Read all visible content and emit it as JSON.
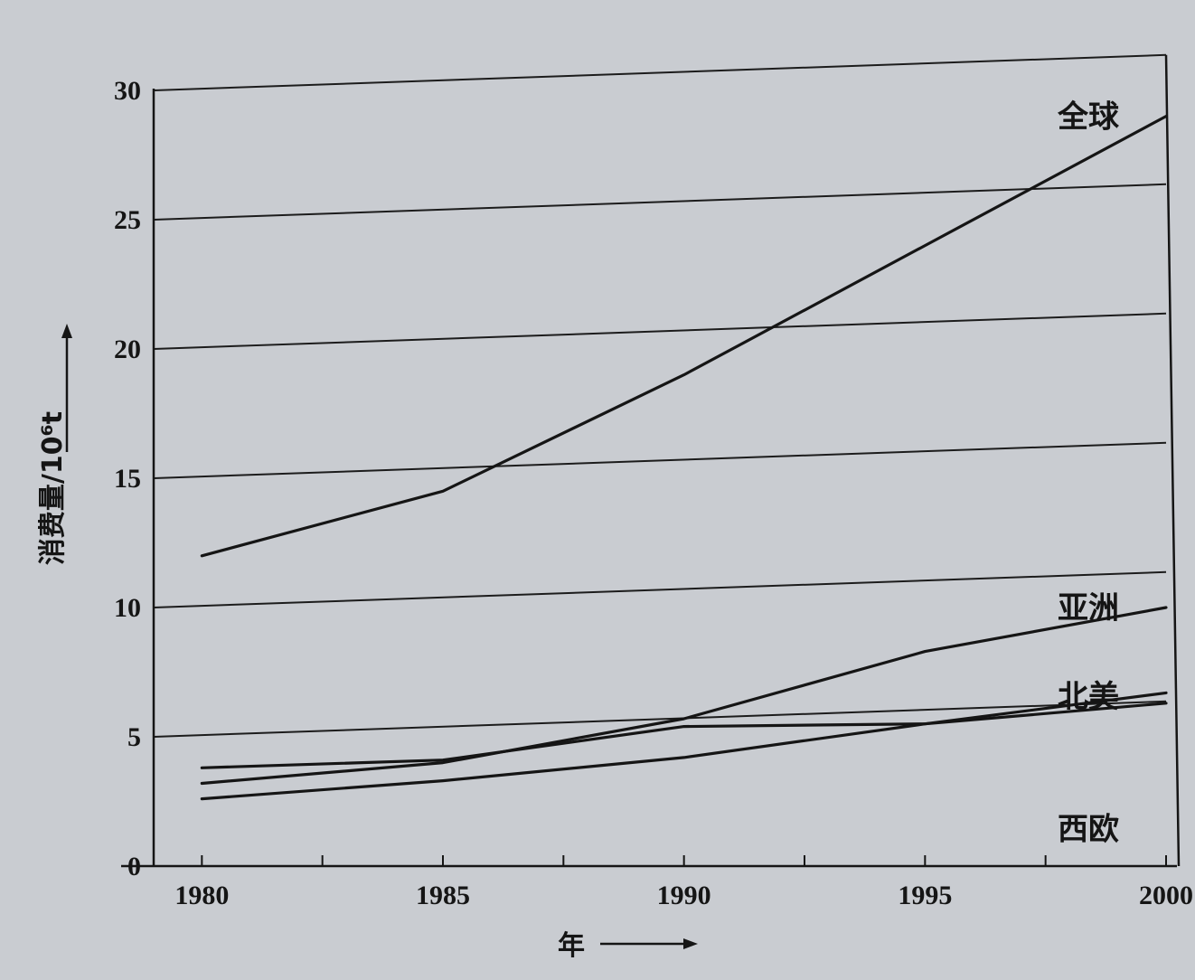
{
  "chart_data": {
    "type": "line",
    "x": [
      1980,
      1985,
      1990,
      1995,
      2000
    ],
    "xlabel": "年",
    "ylabel": "消费量/10⁶t",
    "ylim": [
      0,
      30
    ],
    "xlim": [
      1979,
      2000
    ],
    "yticks": [
      "0",
      "5",
      "10",
      "15",
      "20",
      "25",
      "30"
    ],
    "xticks": [
      "1980",
      "1985",
      "1990",
      "1995",
      "2000"
    ],
    "grid": "horizontal",
    "series": [
      {
        "name": "全球",
        "values": [
          12.0,
          14.5,
          19.0,
          24.0,
          29.0
        ]
      },
      {
        "name": "亚洲",
        "values": [
          3.2,
          4.0,
          5.7,
          8.3,
          10.0
        ]
      },
      {
        "name": "北美",
        "values": [
          3.8,
          4.1,
          5.4,
          5.5,
          6.3
        ]
      },
      {
        "name": "西欧",
        "values": [
          2.6,
          3.3,
          4.2,
          5.5,
          6.7
        ]
      }
    ],
    "line_color": "#151515",
    "grid_color": "#1c1c1c"
  }
}
